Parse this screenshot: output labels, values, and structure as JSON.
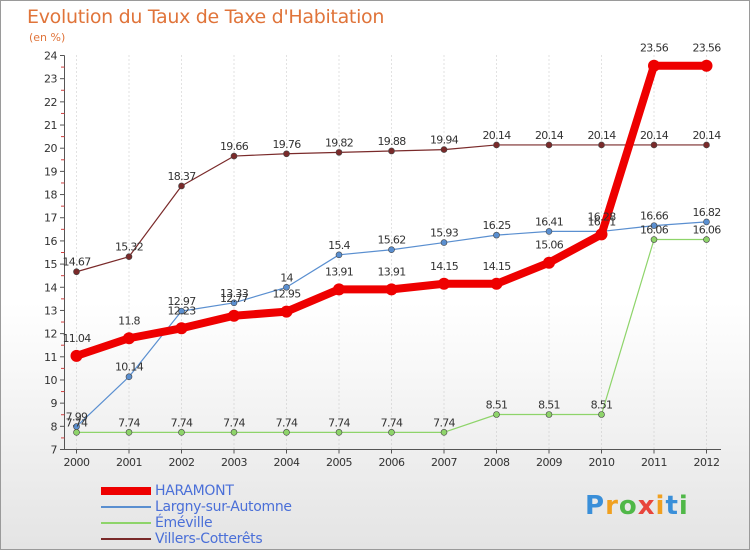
{
  "title": "Evolution du Taux de Taxe d'Habitation",
  "subtitle": "(en %)",
  "brand": {
    "letters": [
      "P",
      "r",
      "o",
      "x",
      "i",
      "t",
      "i"
    ]
  },
  "chart_data": {
    "type": "line",
    "title": "Evolution du Taux de Taxe d'Habitation",
    "ylabel": "(en %)",
    "xlabel": "",
    "ylim": [
      7,
      24
    ],
    "yticks": [
      7,
      8,
      9,
      10,
      11,
      12,
      13,
      14,
      15,
      16,
      17,
      18,
      19,
      20,
      21,
      22,
      23,
      24
    ],
    "categories": [
      "2000",
      "2001",
      "2002",
      "2003",
      "2004",
      "2005",
      "2006",
      "2007",
      "2008",
      "2009",
      "2010",
      "2011",
      "2012"
    ],
    "grid": "vertical dotted",
    "legend": "bottom-left",
    "series": [
      {
        "name": "Villers-Cotterêts",
        "color": "#7a2a2a",
        "values": [
          14.67,
          15.32,
          18.37,
          19.66,
          19.76,
          19.82,
          19.88,
          19.94,
          20.14,
          20.14,
          20.14,
          20.14,
          20.14
        ]
      },
      {
        "name": "Largny-sur-Automne",
        "color": "#5a8fd0",
        "values": [
          7.99,
          10.14,
          12.97,
          13.33,
          14,
          15.4,
          15.62,
          15.93,
          16.25,
          16.41,
          16.41,
          16.66,
          16.82
        ],
        "labels": [
          "7.99",
          "10.14",
          "12.97",
          "13.33",
          "14",
          "15.4",
          "15.62",
          "15.93",
          "16.25",
          "16.41",
          "16.41",
          "16.66",
          "16.82"
        ]
      },
      {
        "name": "Éméville",
        "color": "#8ed46a",
        "values": [
          7.74,
          7.74,
          7.74,
          7.74,
          7.74,
          7.74,
          7.74,
          7.74,
          8.51,
          8.51,
          8.51,
          16.06,
          16.06
        ]
      },
      {
        "name": "HARAMONT",
        "color": "#ee0000",
        "values": [
          11.04,
          11.8,
          12.23,
          12.77,
          12.95,
          13.91,
          13.91,
          14.15,
          14.15,
          15.06,
          16.28,
          23.56,
          23.56
        ]
      }
    ]
  },
  "legend_order": [
    "HARAMONT",
    "Largny-sur-Automne",
    "Éméville",
    "Villers-Cotterêts"
  ]
}
